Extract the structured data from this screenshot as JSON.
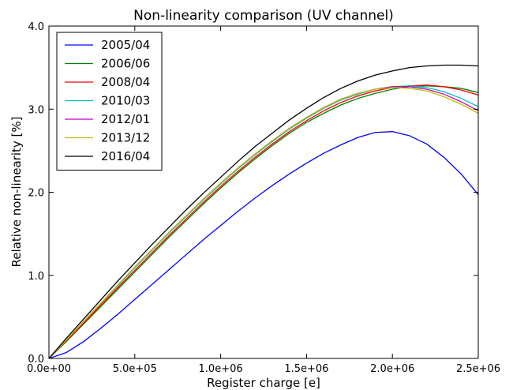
{
  "chart_data": {
    "type": "line",
    "title": "Non-linearity comparison (UV channel)",
    "xlabel": "Register charge [e]",
    "ylabel": "Relative non-linearity [%]",
    "xlim": [
      0,
      2500000
    ],
    "ylim": [
      0.0,
      4.0
    ],
    "xticks": [
      0,
      500000,
      1000000,
      1500000,
      2000000,
      2500000
    ],
    "xtick_labels": [
      "0.0e+00",
      "5.0e+05",
      "1.0e+06",
      "1.5e+06",
      "2.0e+06",
      "2.5e+06"
    ],
    "yticks": [
      0.0,
      1.0,
      2.0,
      3.0,
      4.0
    ],
    "ytick_labels": [
      "0.0",
      "1.0",
      "2.0",
      "3.0",
      "4.0"
    ],
    "grid": false,
    "legend_position": "top-left",
    "x": [
      0,
      100000,
      200000,
      300000,
      400000,
      500000,
      600000,
      700000,
      800000,
      900000,
      1000000,
      1100000,
      1200000,
      1300000,
      1400000,
      1500000,
      1600000,
      1700000,
      1800000,
      1900000,
      2000000,
      2100000,
      2200000,
      2300000,
      2400000,
      2500000
    ],
    "series": [
      {
        "name": "2005/04",
        "color": "#0000ff",
        "values": [
          0.0,
          0.07,
          0.2,
          0.36,
          0.53,
          0.71,
          0.89,
          1.07,
          1.25,
          1.43,
          1.6,
          1.77,
          1.93,
          2.08,
          2.22,
          2.35,
          2.47,
          2.57,
          2.66,
          2.72,
          2.73,
          2.68,
          2.58,
          2.42,
          2.22,
          1.97
        ]
      },
      {
        "name": "2006/06",
        "color": "#008000",
        "values": [
          0.0,
          0.2,
          0.41,
          0.62,
          0.83,
          1.04,
          1.25,
          1.46,
          1.66,
          1.86,
          2.05,
          2.23,
          2.4,
          2.56,
          2.71,
          2.84,
          2.95,
          3.05,
          3.13,
          3.19,
          3.24,
          3.27,
          3.28,
          3.27,
          3.25,
          3.2
        ]
      },
      {
        "name": "2008/04",
        "color": "#ff0000",
        "values": [
          0.0,
          0.21,
          0.42,
          0.64,
          0.85,
          1.06,
          1.27,
          1.48,
          1.68,
          1.88,
          2.07,
          2.25,
          2.42,
          2.58,
          2.73,
          2.86,
          2.98,
          3.08,
          3.16,
          3.22,
          3.26,
          3.28,
          3.29,
          3.27,
          3.23,
          3.17
        ]
      },
      {
        "name": "2010/03",
        "color": "#00bfbf",
        "values": [
          0.0,
          0.22,
          0.44,
          0.66,
          0.87,
          1.09,
          1.3,
          1.51,
          1.71,
          1.91,
          2.1,
          2.28,
          2.45,
          2.61,
          2.76,
          2.89,
          3.01,
          3.11,
          3.18,
          3.24,
          3.27,
          3.28,
          3.26,
          3.21,
          3.13,
          3.03
        ]
      },
      {
        "name": "2012/01",
        "color": "#bf00bf",
        "values": [
          0.0,
          0.22,
          0.44,
          0.66,
          0.88,
          1.1,
          1.31,
          1.52,
          1.72,
          1.92,
          2.11,
          2.29,
          2.46,
          2.62,
          2.77,
          2.9,
          3.02,
          3.12,
          3.19,
          3.24,
          3.27,
          3.27,
          3.24,
          3.18,
          3.09,
          2.98
        ]
      },
      {
        "name": "2013/12",
        "color": "#bfbf00",
        "values": [
          0.0,
          0.22,
          0.44,
          0.66,
          0.88,
          1.1,
          1.31,
          1.52,
          1.72,
          1.92,
          2.11,
          2.29,
          2.46,
          2.62,
          2.77,
          2.9,
          3.02,
          3.12,
          3.19,
          3.24,
          3.26,
          3.25,
          3.22,
          3.15,
          3.06,
          2.95
        ]
      },
      {
        "name": "2016/04",
        "color": "#000000",
        "values": [
          0.0,
          0.24,
          0.47,
          0.7,
          0.93,
          1.15,
          1.37,
          1.58,
          1.79,
          1.99,
          2.18,
          2.37,
          2.55,
          2.71,
          2.87,
          3.01,
          3.14,
          3.25,
          3.34,
          3.41,
          3.46,
          3.5,
          3.52,
          3.53,
          3.53,
          3.52
        ]
      }
    ]
  }
}
